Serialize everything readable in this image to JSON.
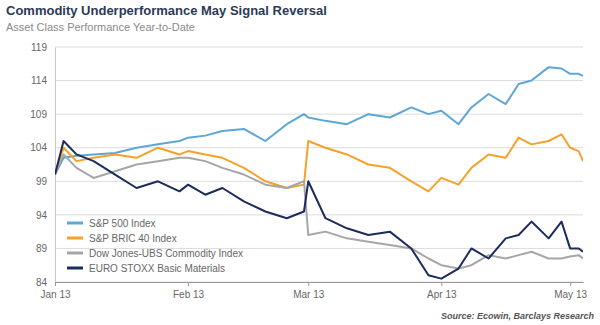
{
  "chart_data": {
    "type": "line",
    "title": "Commodity Underperformance May Signal Reversal",
    "subtitle": "Asset Class Performance Year-to-Date",
    "source": "Source: Ecowin, Barclays Research",
    "x": [
      0,
      2,
      5,
      9,
      14,
      19,
      24,
      29,
      31,
      35,
      39,
      44,
      49,
      54,
      58,
      59,
      63,
      68,
      73,
      78,
      83,
      87,
      90,
      94,
      97,
      101,
      105,
      108,
      111,
      115,
      118,
      120,
      122,
      123
    ],
    "xlim": [
      0,
      123
    ],
    "xticks": [
      {
        "value": 0,
        "label": "Jan 13"
      },
      {
        "value": 31,
        "label": "Feb 13"
      },
      {
        "value": 59,
        "label": "Mar 13"
      },
      {
        "value": 90,
        "label": "Apr 13"
      },
      {
        "value": 120,
        "label": "May 13"
      }
    ],
    "ylim": [
      84,
      119
    ],
    "yticks": [
      84,
      89,
      94,
      99,
      104,
      109,
      114,
      119
    ],
    "grid": true,
    "legend": "lower left",
    "series": [
      {
        "name": "S&P 500 Index",
        "color": "#5ea6d6",
        "values": [
          100,
          102.5,
          102.8,
          103,
          103.2,
          104,
          104.5,
          105,
          105.5,
          105.8,
          106.5,
          106.8,
          105,
          107.5,
          109,
          108.5,
          108,
          107.5,
          109,
          108.5,
          110,
          109,
          109.5,
          107.5,
          110,
          112,
          110.5,
          113.5,
          114,
          116,
          115.8,
          115,
          115,
          114.7
        ]
      },
      {
        "name": "S&P BRIC 40 Index",
        "color": "#f5a12a",
        "values": [
          100,
          104,
          102,
          102.5,
          103,
          102.5,
          104,
          103,
          103.5,
          103,
          102.5,
          101,
          99,
          98,
          98.5,
          105,
          104,
          103,
          101.5,
          101,
          99,
          97.5,
          99.5,
          98.5,
          101,
          103,
          102.5,
          105.5,
          104.5,
          105,
          106,
          104,
          103.5,
          102
        ]
      },
      {
        "name": "Dow Jones-UBS Commodity Index",
        "color": "#a6a6a6",
        "values": [
          100,
          103,
          101,
          99.5,
          100.5,
          101.5,
          102,
          102.5,
          102.5,
          102,
          101,
          100,
          98.5,
          98,
          99,
          91,
          91.5,
          90.5,
          90,
          89.5,
          89,
          87.5,
          86.5,
          86,
          86.5,
          88,
          87.5,
          88,
          88.5,
          87.5,
          87.5,
          87.8,
          88,
          87.5
        ]
      },
      {
        "name": "EURO STOXX Basic Materials",
        "color": "#1c2c5b",
        "values": [
          100,
          105,
          103,
          102,
          100,
          98,
          99,
          97.5,
          98.5,
          97,
          98,
          96,
          94.5,
          93.5,
          94.5,
          99,
          93.5,
          92,
          91,
          91.5,
          89,
          85,
          84.5,
          86,
          89,
          87.5,
          90.5,
          91,
          93,
          90.5,
          93,
          89,
          89,
          88.5
        ]
      }
    ]
  }
}
